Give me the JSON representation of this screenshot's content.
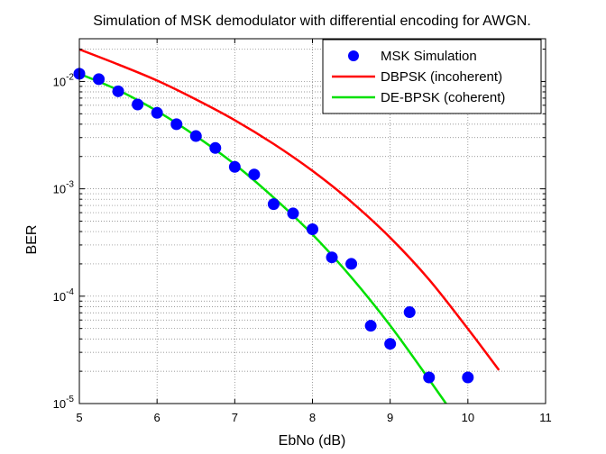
{
  "chart_data": {
    "type": "line",
    "title": "Simulation of MSK demodulator with differential encoding for AWGN.",
    "xlabel": "EbNo (dB)",
    "ylabel": "BER",
    "xlim": [
      5,
      11
    ],
    "ylim": [
      1e-05,
      0.025
    ],
    "y_scale": "log",
    "grid": true,
    "grid_style": "dotted",
    "legend_position": "top-right",
    "x_ticks": [
      5,
      6,
      7,
      8,
      9,
      10,
      11
    ],
    "y_ticks": [
      {
        "value": 1e-05,
        "base": "10",
        "exp": "-5"
      },
      {
        "value": 0.0001,
        "base": "10",
        "exp": "-4"
      },
      {
        "value": 0.001,
        "base": "10",
        "exp": "-3"
      },
      {
        "value": 0.01,
        "base": "10",
        "exp": "-2"
      }
    ],
    "series": [
      {
        "name": "MSK Simulation",
        "style": "markers",
        "color": "#0000ff",
        "x": [
          5,
          5.25,
          5.5,
          5.75,
          6,
          6.25,
          6.5,
          6.75,
          7,
          7.25,
          7.5,
          7.75,
          8,
          8.25,
          8.5,
          8.75,
          9,
          9.25,
          9.5,
          10
        ],
        "values": [
          0.0118,
          0.0105,
          0.0081,
          0.0061,
          0.0051,
          0.004,
          0.0031,
          0.0024,
          0.0016,
          0.00136,
          0.00072,
          0.00059,
          0.00042,
          0.00023,
          0.0002,
          5.3e-05,
          3.6e-05,
          7.1e-05,
          1.75e-05,
          1.75e-05
        ]
      },
      {
        "name": "DBPSK (incoherent)",
        "style": "line",
        "color": "#ff0000",
        "x": [
          5,
          5.5,
          6,
          6.5,
          7,
          7.5,
          8,
          8.5,
          9,
          9.5,
          10,
          10.4
        ],
        "values": [
          0.0199,
          0.0144,
          0.0102,
          0.0068,
          0.00436,
          0.00262,
          0.00147,
          0.000757,
          0.000351,
          0.000143,
          4.97e-05,
          2.05e-05
        ]
      },
      {
        "name": "DE-BPSK (coherent)",
        "style": "line",
        "color": "#00e000",
        "x": [
          5,
          5.5,
          6,
          6.5,
          7,
          7.5,
          8,
          8.5,
          9,
          9.5,
          10
        ],
        "values": [
          0.0118,
          0.0083,
          0.0053,
          0.0031,
          0.00169,
          0.00083,
          0.000376,
          0.00015,
          5.33e-05,
          1.68e-05,
          5.1e-06
        ]
      }
    ]
  }
}
